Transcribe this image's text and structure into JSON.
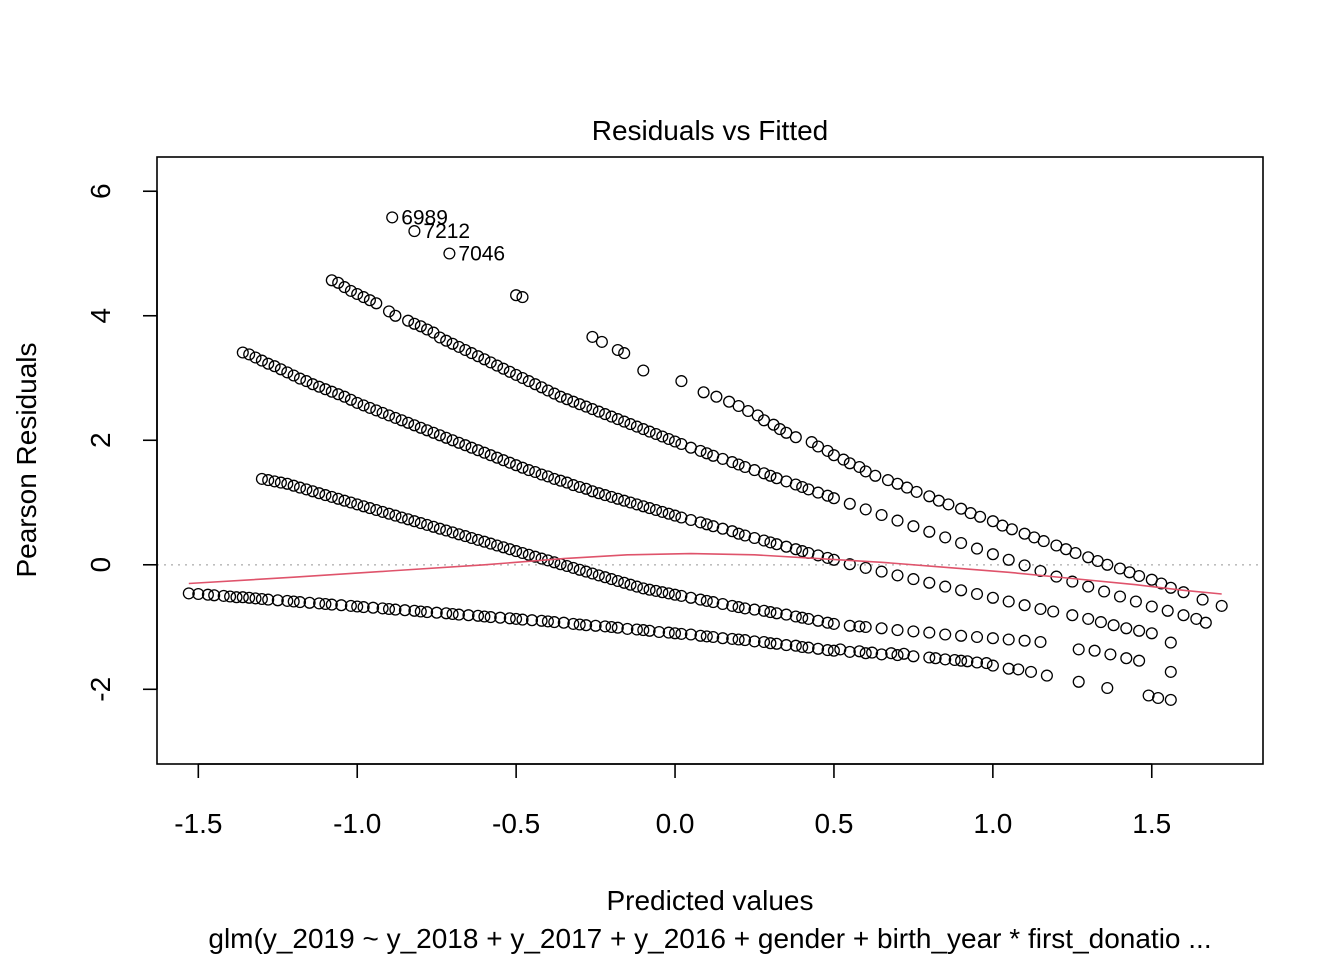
{
  "chart_data": {
    "type": "scatter",
    "title": "Residuals vs Fitted",
    "xlabel": "Predicted values",
    "ylabel": "Pearson Residuals",
    "caption": "glm(y_2019 ~ y_2018 + y_2017 + y_2016 + gender + birth_year * first_donatio ...",
    "xlim": [
      -1.63,
      1.85
    ],
    "ylim": [
      -3.2,
      6.55
    ],
    "x_ticks": [
      -1.5,
      -1.0,
      -0.5,
      0.0,
      0.5,
      1.0,
      1.5
    ],
    "x_tick_labels": [
      "-1.5",
      "-1.0",
      "-0.5",
      "0.0",
      "0.5",
      "1.0",
      "1.5"
    ],
    "y_ticks": [
      -2,
      0,
      2,
      4,
      6
    ],
    "y_tick_labels": [
      "-2",
      "0",
      "2",
      "4",
      "6"
    ],
    "reference_line": {
      "y": 0,
      "style": "dotted",
      "color": "#bebebe"
    },
    "point_color": "#000000",
    "smooth_color": "#df536b",
    "grid": false,
    "series": [
      {
        "band": "y0",
        "x": [
          -1.53,
          -1.5,
          -1.47,
          -1.45,
          -1.42,
          -1.4,
          -1.38,
          -1.36,
          -1.34,
          -1.32,
          -1.3,
          -1.28,
          -1.25,
          -1.22,
          -1.2,
          -1.18,
          -1.15,
          -1.12,
          -1.1,
          -1.08,
          -1.05,
          -1.02,
          -1.0,
          -0.98,
          -0.95,
          -0.92,
          -0.9,
          -0.88,
          -0.85,
          -0.82,
          -0.8,
          -0.78,
          -0.75,
          -0.72,
          -0.7,
          -0.68,
          -0.65,
          -0.62,
          -0.6,
          -0.58,
          -0.55,
          -0.52,
          -0.5,
          -0.48,
          -0.45,
          -0.42,
          -0.4,
          -0.38,
          -0.35,
          -0.32,
          -0.3,
          -0.28,
          -0.25,
          -0.22,
          -0.2,
          -0.18,
          -0.15,
          -0.12,
          -0.1,
          -0.08,
          -0.05,
          -0.02,
          0.0,
          0.02,
          0.05,
          0.08,
          0.1,
          0.12,
          0.15,
          0.18,
          0.2,
          0.22,
          0.25,
          0.28,
          0.3,
          0.32,
          0.35,
          0.38,
          0.4,
          0.42,
          0.45,
          0.48,
          0.5,
          0.52,
          0.55,
          0.58,
          0.6,
          0.62,
          0.65,
          0.68,
          0.7,
          0.72,
          0.75,
          0.8,
          0.82,
          0.85,
          0.88,
          0.9,
          0.92,
          0.95,
          0.98,
          1.0,
          1.05,
          1.08,
          1.12,
          1.17,
          1.27,
          1.36,
          1.49,
          1.52,
          1.56
        ],
        "y": [
          -0.46,
          -0.47,
          -0.48,
          -0.49,
          -0.5,
          -0.51,
          -0.52,
          -0.52,
          -0.53,
          -0.54,
          -0.55,
          -0.56,
          -0.57,
          -0.58,
          -0.59,
          -0.6,
          -0.61,
          -0.62,
          -0.63,
          -0.64,
          -0.65,
          -0.66,
          -0.67,
          -0.68,
          -0.69,
          -0.7,
          -0.71,
          -0.72,
          -0.73,
          -0.74,
          -0.75,
          -0.76,
          -0.77,
          -0.78,
          -0.79,
          -0.8,
          -0.81,
          -0.82,
          -0.83,
          -0.84,
          -0.85,
          -0.86,
          -0.87,
          -0.88,
          -0.89,
          -0.9,
          -0.91,
          -0.92,
          -0.93,
          -0.95,
          -0.96,
          -0.97,
          -0.98,
          -0.99,
          -1.0,
          -1.01,
          -1.03,
          -1.04,
          -1.05,
          -1.06,
          -1.08,
          -1.09,
          -1.1,
          -1.11,
          -1.12,
          -1.14,
          -1.15,
          -1.16,
          -1.18,
          -1.19,
          -1.2,
          -1.21,
          -1.23,
          -1.24,
          -1.26,
          -1.27,
          -1.29,
          -1.3,
          -1.32,
          -1.33,
          -1.35,
          -1.37,
          -1.38,
          -1.36,
          -1.4,
          -1.39,
          -1.42,
          -1.41,
          -1.44,
          -1.42,
          -1.45,
          -1.43,
          -1.47,
          -1.49,
          -1.5,
          -1.52,
          -1.53,
          -1.54,
          -1.55,
          -1.57,
          -1.58,
          -1.62,
          -1.67,
          -1.68,
          -1.72,
          -1.78,
          -1.88,
          -1.98,
          -2.1,
          -2.14,
          -2.17
        ]
      },
      {
        "band": "y1",
        "x": [
          -1.3,
          -1.28,
          -1.26,
          -1.24,
          -1.22,
          -1.2,
          -1.18,
          -1.16,
          -1.14,
          -1.12,
          -1.1,
          -1.08,
          -1.06,
          -1.04,
          -1.02,
          -1.0,
          -0.98,
          -0.96,
          -0.94,
          -0.92,
          -0.9,
          -0.88,
          -0.86,
          -0.84,
          -0.82,
          -0.8,
          -0.78,
          -0.76,
          -0.74,
          -0.72,
          -0.7,
          -0.68,
          -0.66,
          -0.64,
          -0.62,
          -0.6,
          -0.58,
          -0.56,
          -0.54,
          -0.52,
          -0.5,
          -0.48,
          -0.46,
          -0.44,
          -0.42,
          -0.4,
          -0.38,
          -0.36,
          -0.34,
          -0.32,
          -0.3,
          -0.28,
          -0.26,
          -0.24,
          -0.22,
          -0.2,
          -0.18,
          -0.16,
          -0.14,
          -0.12,
          -0.1,
          -0.08,
          -0.06,
          -0.04,
          -0.02,
          0.0,
          0.02,
          0.05,
          0.08,
          0.1,
          0.12,
          0.15,
          0.18,
          0.2,
          0.22,
          0.25,
          0.28,
          0.3,
          0.32,
          0.35,
          0.38,
          0.4,
          0.42,
          0.45,
          0.48,
          0.5,
          0.55,
          0.58,
          0.6,
          0.65,
          0.7,
          0.75,
          0.8,
          0.85,
          0.9,
          0.95,
          1.0,
          1.05,
          1.1,
          1.15,
          1.27,
          1.32,
          1.37,
          1.42,
          1.46,
          1.56
        ],
        "y": [
          1.38,
          1.36,
          1.34,
          1.32,
          1.3,
          1.27,
          1.24,
          1.21,
          1.18,
          1.15,
          1.12,
          1.09,
          1.06,
          1.03,
          1.0,
          0.97,
          0.94,
          0.91,
          0.88,
          0.85,
          0.82,
          0.79,
          0.76,
          0.73,
          0.7,
          0.67,
          0.64,
          0.61,
          0.58,
          0.55,
          0.52,
          0.49,
          0.46,
          0.43,
          0.4,
          0.37,
          0.34,
          0.31,
          0.28,
          0.25,
          0.22,
          0.19,
          0.16,
          0.13,
          0.1,
          0.07,
          0.04,
          0.01,
          -0.02,
          -0.05,
          -0.08,
          -0.11,
          -0.14,
          -0.17,
          -0.2,
          -0.23,
          -0.26,
          -0.29,
          -0.32,
          -0.35,
          -0.38,
          -0.4,
          -0.42,
          -0.44,
          -0.46,
          -0.48,
          -0.5,
          -0.53,
          -0.56,
          -0.58,
          -0.6,
          -0.63,
          -0.66,
          -0.68,
          -0.7,
          -0.72,
          -0.74,
          -0.76,
          -0.78,
          -0.8,
          -0.83,
          -0.85,
          -0.87,
          -0.9,
          -0.93,
          -0.95,
          -0.98,
          -0.99,
          -1.0,
          -1.02,
          -1.05,
          -1.07,
          -1.09,
          -1.12,
          -1.14,
          -1.16,
          -1.18,
          -1.2,
          -1.22,
          -1.24,
          -1.36,
          -1.38,
          -1.44,
          -1.5,
          -1.54,
          -1.72
        ]
      },
      {
        "band": "y2",
        "x": [
          -1.36,
          -1.34,
          -1.32,
          -1.3,
          -1.28,
          -1.26,
          -1.24,
          -1.22,
          -1.2,
          -1.18,
          -1.16,
          -1.14,
          -1.12,
          -1.1,
          -1.08,
          -1.06,
          -1.04,
          -1.02,
          -1.0,
          -0.98,
          -0.96,
          -0.94,
          -0.92,
          -0.9,
          -0.88,
          -0.86,
          -0.84,
          -0.82,
          -0.8,
          -0.78,
          -0.76,
          -0.74,
          -0.72,
          -0.7,
          -0.68,
          -0.66,
          -0.64,
          -0.62,
          -0.6,
          -0.58,
          -0.56,
          -0.54,
          -0.52,
          -0.5,
          -0.48,
          -0.46,
          -0.44,
          -0.42,
          -0.4,
          -0.38,
          -0.36,
          -0.34,
          -0.32,
          -0.3,
          -0.28,
          -0.26,
          -0.24,
          -0.22,
          -0.2,
          -0.18,
          -0.16,
          -0.14,
          -0.12,
          -0.1,
          -0.08,
          -0.06,
          -0.04,
          -0.02,
          0.0,
          0.02,
          0.05,
          0.08,
          0.1,
          0.12,
          0.15,
          0.18,
          0.2,
          0.22,
          0.25,
          0.28,
          0.3,
          0.32,
          0.35,
          0.38,
          0.4,
          0.42,
          0.45,
          0.48,
          0.5,
          0.55,
          0.6,
          0.65,
          0.7,
          0.75,
          0.8,
          0.85,
          0.9,
          0.95,
          1.0,
          1.05,
          1.1,
          1.15,
          1.19,
          1.25,
          1.3,
          1.34,
          1.38,
          1.42,
          1.46,
          1.5,
          1.56
        ],
        "y": [
          3.41,
          3.38,
          3.33,
          3.28,
          3.23,
          3.19,
          3.14,
          3.09,
          3.04,
          2.99,
          2.95,
          2.9,
          2.86,
          2.82,
          2.78,
          2.74,
          2.7,
          2.65,
          2.6,
          2.56,
          2.52,
          2.48,
          2.44,
          2.4,
          2.36,
          2.32,
          2.28,
          2.24,
          2.2,
          2.16,
          2.12,
          2.08,
          2.04,
          2.0,
          1.96,
          1.92,
          1.88,
          1.84,
          1.8,
          1.76,
          1.72,
          1.68,
          1.64,
          1.6,
          1.56,
          1.52,
          1.49,
          1.45,
          1.42,
          1.38,
          1.35,
          1.32,
          1.28,
          1.25,
          1.22,
          1.18,
          1.15,
          1.12,
          1.09,
          1.06,
          1.03,
          1.0,
          0.97,
          0.94,
          0.91,
          0.88,
          0.85,
          0.82,
          0.79,
          0.76,
          0.72,
          0.68,
          0.65,
          0.62,
          0.58,
          0.54,
          0.5,
          0.47,
          0.43,
          0.39,
          0.36,
          0.33,
          0.29,
          0.25,
          0.22,
          0.19,
          0.15,
          0.11,
          0.08,
          0.01,
          -0.05,
          -0.11,
          -0.17,
          -0.23,
          -0.29,
          -0.35,
          -0.41,
          -0.47,
          -0.53,
          -0.59,
          -0.65,
          -0.71,
          -0.75,
          -0.81,
          -0.87,
          -0.92,
          -0.97,
          -1.02,
          -1.06,
          -1.1,
          -1.25
        ]
      },
      {
        "band": "y3",
        "x": [
          -1.08,
          -1.06,
          -1.04,
          -1.02,
          -1.0,
          -0.98,
          -0.96,
          -0.94,
          -0.9,
          -0.88,
          -0.84,
          -0.82,
          -0.8,
          -0.78,
          -0.76,
          -0.74,
          -0.72,
          -0.7,
          -0.68,
          -0.66,
          -0.64,
          -0.62,
          -0.6,
          -0.58,
          -0.56,
          -0.54,
          -0.52,
          -0.5,
          -0.48,
          -0.46,
          -0.44,
          -0.42,
          -0.4,
          -0.38,
          -0.36,
          -0.34,
          -0.32,
          -0.3,
          -0.28,
          -0.26,
          -0.24,
          -0.22,
          -0.2,
          -0.18,
          -0.16,
          -0.14,
          -0.12,
          -0.1,
          -0.08,
          -0.06,
          -0.04,
          -0.02,
          0.0,
          0.02,
          0.05,
          0.08,
          0.1,
          0.12,
          0.15,
          0.18,
          0.2,
          0.22,
          0.25,
          0.28,
          0.3,
          0.32,
          0.35,
          0.38,
          0.4,
          0.42,
          0.45,
          0.48,
          0.5,
          0.55,
          0.6,
          0.65,
          0.7,
          0.75,
          0.8,
          0.85,
          0.9,
          0.95,
          1.0,
          1.05,
          1.1,
          1.15,
          1.2,
          1.25,
          1.3,
          1.35,
          1.4,
          1.45,
          1.5,
          1.55,
          1.6,
          1.64,
          1.67
        ],
        "y": [
          4.57,
          4.53,
          4.46,
          4.4,
          4.35,
          4.3,
          4.25,
          4.2,
          4.07,
          4.0,
          3.92,
          3.87,
          3.83,
          3.78,
          3.73,
          3.65,
          3.6,
          3.55,
          3.5,
          3.45,
          3.4,
          3.35,
          3.3,
          3.25,
          3.2,
          3.15,
          3.1,
          3.05,
          3.0,
          2.95,
          2.9,
          2.85,
          2.8,
          2.75,
          2.7,
          2.66,
          2.62,
          2.58,
          2.54,
          2.5,
          2.46,
          2.42,
          2.38,
          2.34,
          2.3,
          2.26,
          2.22,
          2.18,
          2.14,
          2.1,
          2.06,
          2.02,
          1.98,
          1.94,
          1.88,
          1.83,
          1.79,
          1.75,
          1.7,
          1.65,
          1.61,
          1.57,
          1.52,
          1.47,
          1.43,
          1.39,
          1.34,
          1.29,
          1.25,
          1.21,
          1.16,
          1.11,
          1.07,
          0.98,
          0.89,
          0.8,
          0.71,
          0.62,
          0.53,
          0.44,
          0.35,
          0.26,
          0.17,
          0.08,
          -0.01,
          -0.1,
          -0.19,
          -0.27,
          -0.35,
          -0.43,
          -0.51,
          -0.59,
          -0.67,
          -0.74,
          -0.81,
          -0.87,
          -0.93
        ]
      },
      {
        "band": "y4",
        "x": [
          -0.5,
          -0.48,
          -0.26,
          -0.23,
          -0.18,
          -0.16,
          -0.1,
          0.02,
          0.09,
          0.13,
          0.17,
          0.2,
          0.23,
          0.26,
          0.28,
          0.31,
          0.33,
          0.35,
          0.38,
          0.43,
          0.45,
          0.48,
          0.5,
          0.53,
          0.55,
          0.58,
          0.6,
          0.63,
          0.67,
          0.7,
          0.73,
          0.76,
          0.8,
          0.83,
          0.86,
          0.9,
          0.93,
          0.96,
          1.0,
          1.03,
          1.06,
          1.1,
          1.13,
          1.16,
          1.2,
          1.23,
          1.26,
          1.3,
          1.33,
          1.36,
          1.4,
          1.43,
          1.46,
          1.5,
          1.53,
          1.56,
          1.6,
          1.66,
          1.72
        ],
        "y": [
          4.33,
          4.3,
          3.66,
          3.58,
          3.45,
          3.4,
          3.12,
          2.95,
          2.77,
          2.7,
          2.62,
          2.55,
          2.47,
          2.4,
          2.32,
          2.25,
          2.18,
          2.12,
          2.05,
          1.97,
          1.9,
          1.83,
          1.76,
          1.69,
          1.63,
          1.57,
          1.5,
          1.43,
          1.36,
          1.3,
          1.24,
          1.17,
          1.1,
          1.03,
          0.97,
          0.9,
          0.83,
          0.77,
          0.7,
          0.63,
          0.57,
          0.5,
          0.44,
          0.38,
          0.31,
          0.25,
          0.19,
          0.12,
          0.06,
          0.0,
          -0.06,
          -0.12,
          -0.18,
          -0.24,
          -0.3,
          -0.37,
          -0.44,
          -0.56,
          -0.66
        ]
      }
    ],
    "labeled_points": [
      {
        "x": -0.89,
        "y": 5.58,
        "label": "6989"
      },
      {
        "x": -0.82,
        "y": 5.36,
        "label": "7212"
      },
      {
        "x": -0.71,
        "y": 5.0,
        "label": "7046"
      }
    ],
    "smooth_line": {
      "x": [
        -1.53,
        -1.2,
        -0.9,
        -0.6,
        -0.35,
        -0.15,
        0.05,
        0.25,
        0.45,
        0.65,
        0.85,
        1.05,
        1.25,
        1.45,
        1.6,
        1.72
      ],
      "y": [
        -0.3,
        -0.2,
        -0.1,
        0.0,
        0.1,
        0.16,
        0.18,
        0.16,
        0.1,
        0.04,
        -0.04,
        -0.12,
        -0.22,
        -0.32,
        -0.41,
        -0.47
      ]
    }
  }
}
